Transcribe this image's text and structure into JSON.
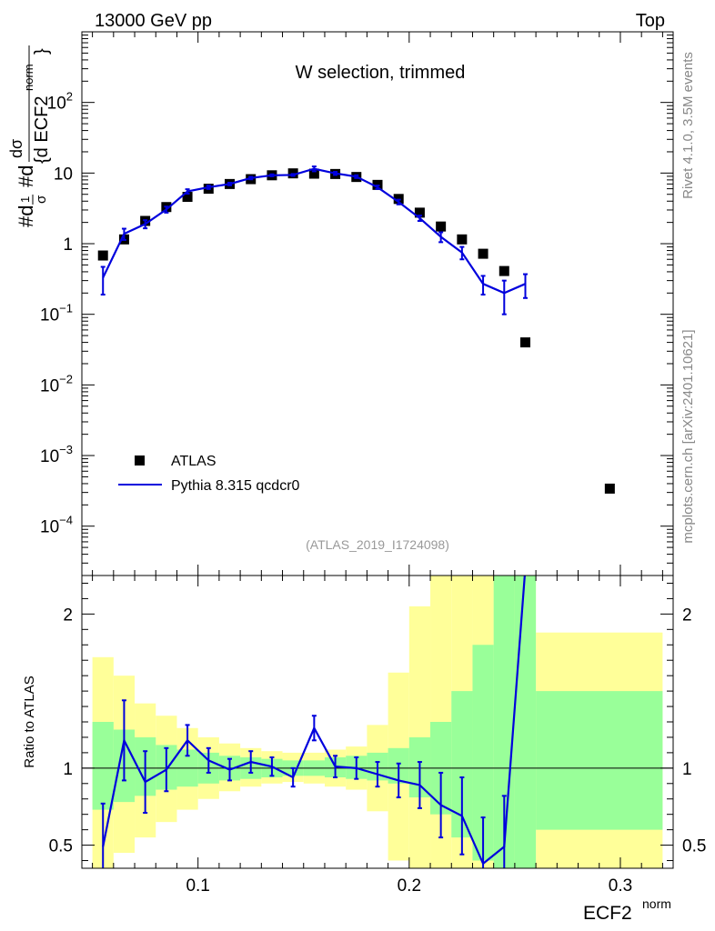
{
  "header": {
    "left": "13000 GeV pp",
    "right": "Top"
  },
  "side_text": {
    "rivet": "Rivet 4.1.0,  3.5M events",
    "mcplots": "mcplots.cern.ch [arXiv:2401.10621]"
  },
  "chart_data": {
    "type": "scatter",
    "title": "W selection, trimmed",
    "analysis_id": "(ATLAS_2019_I1724098)",
    "xlabel": "ECF2",
    "xlabel_sup": "norm",
    "xlim": [
      0.045,
      0.325
    ],
    "xticks": [
      0.1,
      0.2,
      0.3
    ],
    "xtick_labels": [
      "0.1",
      "0.2",
      "0.3"
    ],
    "ylabel": "#d1/σ #d dσ / {d ECF2^norm}",
    "main": {
      "yscale": "log",
      "ylim": [
        2e-05,
        1000
      ],
      "ytick_labels": [
        {
          "value": 100,
          "mantissa": "10",
          "exp": "2"
        },
        {
          "value": 10,
          "mantissa": "10",
          "exp": ""
        },
        {
          "value": 1,
          "mantissa": "1",
          "exp": ""
        },
        {
          "value": 0.1,
          "mantissa": "10",
          "exp": "−1"
        },
        {
          "value": 0.01,
          "mantissa": "10",
          "exp": "−2"
        },
        {
          "value": 0.001,
          "mantissa": "10",
          "exp": "−3"
        },
        {
          "value": 0.0001,
          "mantissa": "10",
          "exp": "−4"
        }
      ]
    },
    "legend": {
      "position": "bottom-left",
      "entries": [
        {
          "label": "ATLAS",
          "style": "marker",
          "color": "#000000"
        },
        {
          "label": "Pythia 8.315 qcdcr0",
          "style": "line",
          "color": "#0000dd"
        }
      ]
    },
    "series": [
      {
        "name": "ATLAS",
        "color": "#000000",
        "x": [
          0.055,
          0.065,
          0.075,
          0.085,
          0.095,
          0.105,
          0.115,
          0.125,
          0.135,
          0.145,
          0.155,
          0.165,
          0.175,
          0.185,
          0.195,
          0.205,
          0.215,
          0.225,
          0.235,
          0.245,
          0.255,
          0.295
        ],
        "y": [
          0.68,
          1.15,
          2.1,
          3.3,
          4.6,
          6.0,
          7.0,
          8.2,
          9.3,
          9.9,
          9.8,
          9.7,
          8.8,
          6.8,
          4.3,
          2.75,
          1.75,
          1.15,
          0.72,
          0.41,
          0.04,
          0.00034
        ]
      },
      {
        "name": "Pythia 8.315 qcdcr0",
        "color": "#0000dd",
        "x": [
          0.055,
          0.065,
          0.075,
          0.085,
          0.095,
          0.105,
          0.115,
          0.125,
          0.135,
          0.145,
          0.155,
          0.165,
          0.175,
          0.185,
          0.195,
          0.205,
          0.215,
          0.225,
          0.235,
          0.245,
          0.255
        ],
        "y": [
          0.33,
          1.38,
          1.9,
          3.05,
          5.5,
          6.3,
          7.0,
          8.5,
          9.3,
          9.4,
          11.5,
          9.9,
          8.9,
          6.3,
          3.9,
          2.3,
          1.25,
          0.75,
          0.27,
          0.2,
          0.27
        ],
        "yerr": [
          0.14,
          0.25,
          0.25,
          0.3,
          0.4,
          0.35,
          0.3,
          0.35,
          0.3,
          0.3,
          0.9,
          0.5,
          0.4,
          0.35,
          0.3,
          0.2,
          0.2,
          0.15,
          0.08,
          0.1,
          0.1
        ]
      }
    ],
    "ratio": {
      "ylabel": "Ratio to ATLAS",
      "ylim": [
        0.35,
        2.25
      ],
      "yticks": [
        0.5,
        1,
        2
      ],
      "ytick_labels": [
        "0.5",
        "1",
        "2"
      ],
      "bands": {
        "edges": [
          0.05,
          0.06,
          0.07,
          0.08,
          0.09,
          0.1,
          0.11,
          0.12,
          0.13,
          0.14,
          0.15,
          0.16,
          0.17,
          0.18,
          0.19,
          0.2,
          0.21,
          0.22,
          0.23,
          0.24,
          0.25,
          0.26,
          0.32
        ],
        "inner_lo": [
          0.73,
          0.78,
          0.82,
          0.86,
          0.88,
          0.9,
          0.92,
          0.93,
          0.94,
          0.95,
          0.95,
          0.94,
          0.93,
          0.92,
          0.9,
          0.81,
          0.7,
          0.55,
          0.4,
          0.3,
          0.3,
          0.6
        ],
        "inner_hi": [
          1.3,
          1.25,
          1.2,
          1.15,
          1.12,
          1.1,
          1.08,
          1.07,
          1.06,
          1.05,
          1.05,
          1.07,
          1.08,
          1.1,
          1.13,
          1.2,
          1.3,
          1.5,
          1.8,
          2.3,
          2.4,
          1.5
        ],
        "outer_lo": [
          0.3,
          0.45,
          0.55,
          0.65,
          0.73,
          0.8,
          0.85,
          0.88,
          0.9,
          0.91,
          0.9,
          0.88,
          0.86,
          0.72,
          0.4,
          0.3,
          0.3,
          0.3,
          0.3,
          0.3,
          0.3,
          0.3
        ],
        "outer_hi": [
          1.72,
          1.6,
          1.42,
          1.34,
          1.26,
          1.2,
          1.16,
          1.13,
          1.11,
          1.1,
          1.1,
          1.12,
          1.14,
          1.28,
          1.62,
          2.05,
          2.4,
          2.4,
          2.4,
          2.4,
          2.4,
          1.88
        ],
        "inner_color": "#99ff99",
        "outer_color": "#ffff99"
      },
      "mc": {
        "color": "#0000dd",
        "x": [
          0.055,
          0.065,
          0.075,
          0.085,
          0.095,
          0.105,
          0.115,
          0.125,
          0.135,
          0.145,
          0.155,
          0.165,
          0.175,
          0.185,
          0.195,
          0.205,
          0.215,
          0.225,
          0.235,
          0.245,
          0.255,
          0.26
        ],
        "y": [
          0.49,
          1.18,
          0.91,
          0.99,
          1.18,
          1.05,
          0.99,
          1.04,
          1.01,
          0.94,
          1.26,
          1.01,
          1.0,
          0.96,
          0.92,
          0.89,
          0.76,
          0.69,
          0.38,
          0.49,
          2.3,
          2.3
        ],
        "yerr": [
          0.28,
          0.26,
          0.2,
          0.14,
          0.1,
          0.08,
          0.07,
          0.07,
          0.06,
          0.06,
          0.08,
          0.07,
          0.07,
          0.08,
          0.11,
          0.15,
          0.21,
          0.25,
          0.3,
          0.33,
          0.0,
          0.0
        ],
        "show_err": [
          true,
          true,
          true,
          true,
          true,
          true,
          true,
          true,
          true,
          true,
          true,
          true,
          true,
          true,
          true,
          true,
          true,
          true,
          true,
          true,
          false,
          false
        ]
      }
    }
  }
}
